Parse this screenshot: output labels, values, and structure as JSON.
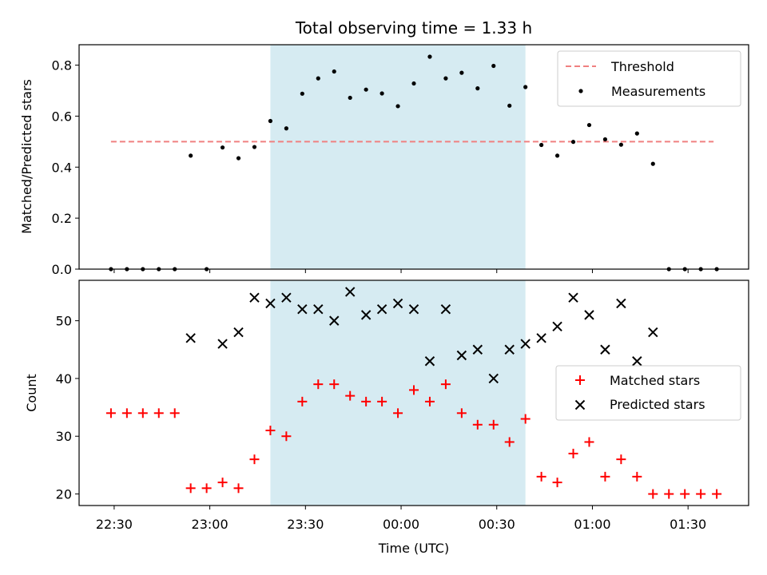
{
  "chart_data": {
    "type": "scatter",
    "title": "Total observing time = 1.33 h",
    "xlabel": "Time (UTC)",
    "x_ticks": [
      "22:30",
      "23:00",
      "23:30",
      "00:00",
      "00:30",
      "01:00",
      "01:30"
    ],
    "x_tick_minutes": [
      0,
      30,
      60,
      90,
      120,
      150,
      180
    ],
    "xlim_minutes": [
      -11,
      199
    ],
    "highlight_span_minutes": [
      49,
      129
    ],
    "highlight_color": "#add8e6",
    "panels": [
      {
        "ylabel": "Matched/Predicted stars",
        "ylim": [
          0,
          0.88
        ],
        "y_ticks": [
          0.0,
          0.2,
          0.4,
          0.6,
          0.8
        ],
        "y_tick_labels": [
          "0.0",
          "0.2",
          "0.4",
          "0.6",
          "0.8"
        ],
        "legend_position": "top-right",
        "threshold": {
          "name": "Threshold",
          "value": 0.5,
          "x_range": [
            -1,
            188
          ],
          "color": "#f08080"
        },
        "measurements": {
          "name": "Measurements",
          "color": "#000000",
          "x": [
            -1,
            4,
            9,
            14,
            19,
            24,
            29,
            34,
            39,
            44,
            49,
            54,
            59,
            64,
            69,
            74,
            79,
            84,
            89,
            94,
            99,
            104,
            109,
            114,
            119,
            124,
            129,
            134,
            139,
            144,
            149,
            154,
            159,
            164,
            169,
            174,
            179,
            184,
            189
          ],
          "y": [
            0,
            0,
            0,
            0,
            0,
            0.445,
            0,
            0.477,
            0.435,
            0.479,
            0.581,
            0.552,
            0.688,
            0.748,
            0.775,
            0.672,
            0.704,
            0.689,
            0.639,
            0.728,
            0.833,
            0.748,
            0.77,
            0.709,
            0.797,
            0.641,
            0.714,
            0.487,
            0.445,
            0.499,
            0.565,
            0.509,
            0.488,
            0.532,
            0.413,
            0,
            0,
            0,
            0
          ]
        }
      },
      {
        "ylabel": "Count",
        "ylim": [
          18,
          57
        ],
        "y_ticks": [
          20,
          30,
          40,
          50
        ],
        "y_tick_labels": [
          "20",
          "30",
          "40",
          "50"
        ],
        "legend_position": "center-right",
        "matched": {
          "name": "Matched stars",
          "color": "#ff0000",
          "x": [
            -1,
            4,
            9,
            14,
            19,
            24,
            29,
            34,
            39,
            44,
            49,
            54,
            59,
            64,
            69,
            74,
            79,
            84,
            89,
            94,
            99,
            104,
            109,
            114,
            119,
            124,
            129,
            134,
            139,
            144,
            149,
            154,
            159,
            164,
            169,
            174,
            179,
            184,
            189
          ],
          "y": [
            34,
            34,
            34,
            34,
            34,
            21,
            21,
            22,
            21,
            26,
            31,
            30,
            36,
            39,
            39,
            37,
            36,
            36,
            34,
            38,
            36,
            39,
            34,
            32,
            32,
            29,
            33,
            23,
            22,
            27,
            29,
            23,
            26,
            23,
            20,
            20,
            20,
            20,
            20
          ]
        },
        "predicted": {
          "name": "Predicted stars",
          "color": "#000000",
          "x": [
            24,
            34,
            39,
            44,
            49,
            54,
            59,
            64,
            69,
            74,
            79,
            84,
            89,
            94,
            99,
            104,
            109,
            114,
            119,
            124,
            129,
            134,
            139,
            144,
            149,
            154,
            159,
            164,
            169
          ],
          "y": [
            47,
            46,
            48,
            54,
            53,
            54,
            52,
            52,
            50,
            55,
            51,
            52,
            53,
            52,
            43,
            52,
            44,
            45,
            40,
            45,
            46,
            47,
            49,
            54,
            51,
            45,
            53,
            43,
            48
          ]
        }
      }
    ]
  }
}
